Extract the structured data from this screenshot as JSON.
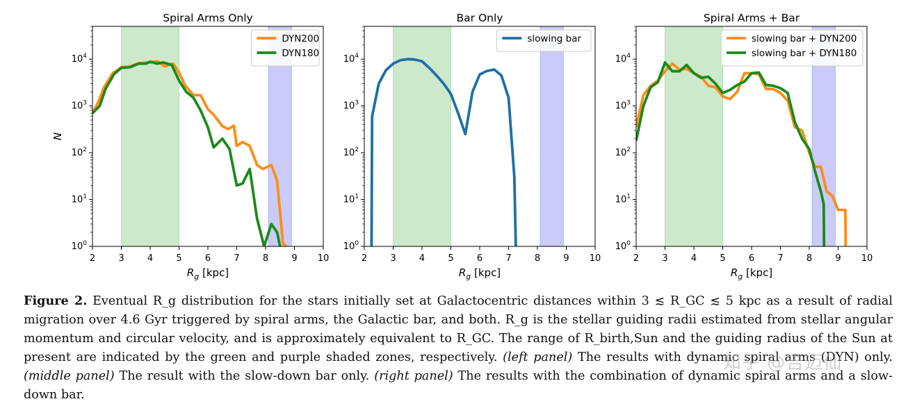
{
  "chart_data": [
    {
      "type": "line",
      "title": "Spiral Arms Only",
      "xlabel_text": "[kpc]",
      "ylabel": "N",
      "xlim": [
        2,
        10
      ],
      "ylim_log10": [
        0,
        4.7
      ],
      "yscale": "log",
      "xticks": [
        "2",
        "3",
        "4",
        "5",
        "6",
        "7",
        "8",
        "9",
        "10"
      ],
      "yticks": [
        "10^0",
        "10^1",
        "10^2",
        "10^3",
        "10^4"
      ],
      "shaded": [
        {
          "x0": 3.0,
          "x1": 5.0,
          "color": "#8fcf8c",
          "label": "R_birth,Sun"
        },
        {
          "x0": 8.1,
          "x1": 8.9,
          "color": "#8c8cf0",
          "label": "Sun guiding radius"
        }
      ],
      "legend": "top-right",
      "series": [
        {
          "name": "DYN200",
          "color": "#ff8c1a",
          "points": [
            [
              2.0,
              700
            ],
            [
              2.2,
              1200
            ],
            [
              2.4,
              2500
            ],
            [
              2.7,
              5000
            ],
            [
              3.0,
              6700
            ],
            [
              3.3,
              7000
            ],
            [
              3.6,
              8200
            ],
            [
              4.0,
              8600
            ],
            [
              4.25,
              9000
            ],
            [
              4.5,
              7000
            ],
            [
              4.8,
              8000
            ],
            [
              5.0,
              5200
            ],
            [
              5.2,
              2800
            ],
            [
              5.5,
              1700
            ],
            [
              5.75,
              1700
            ],
            [
              6.0,
              850
            ],
            [
              6.2,
              650
            ],
            [
              6.5,
              370
            ],
            [
              6.7,
              320
            ],
            [
              6.9,
              380
            ],
            [
              7.0,
              140
            ],
            [
              7.2,
              170
            ],
            [
              7.45,
              140
            ],
            [
              7.7,
              55
            ],
            [
              7.9,
              45
            ],
            [
              8.2,
              55
            ],
            [
              8.4,
              25
            ],
            [
              8.6,
              1.2
            ],
            [
              8.7,
              1
            ]
          ]
        },
        {
          "name": "DYN180",
          "color": "#1a8a1a",
          "points": [
            [
              2.0,
              700
            ],
            [
              2.25,
              1000
            ],
            [
              2.45,
              2300
            ],
            [
              2.75,
              4800
            ],
            [
              3.0,
              6500
            ],
            [
              3.3,
              6700
            ],
            [
              3.6,
              8000
            ],
            [
              3.85,
              8000
            ],
            [
              4.0,
              8800
            ],
            [
              4.25,
              8000
            ],
            [
              4.45,
              8500
            ],
            [
              4.75,
              7500
            ],
            [
              5.0,
              3500
            ],
            [
              5.25,
              2000
            ],
            [
              5.5,
              1500
            ],
            [
              5.75,
              800
            ],
            [
              6.0,
              350
            ],
            [
              6.2,
              130
            ],
            [
              6.5,
              200
            ],
            [
              6.75,
              120
            ],
            [
              7.0,
              20
            ],
            [
              7.2,
              22
            ],
            [
              7.45,
              45
            ],
            [
              7.7,
              4
            ],
            [
              7.95,
              1
            ],
            [
              8.2,
              3
            ],
            [
              8.4,
              2
            ],
            [
              8.5,
              1
            ]
          ]
        }
      ]
    },
    {
      "type": "line",
      "title": "Bar Only",
      "xlabel_text": "[kpc]",
      "ylabel": "",
      "xlim": [
        2,
        10
      ],
      "ylim_log10": [
        0,
        4.7
      ],
      "yscale": "log",
      "xticks": [
        "2",
        "3",
        "4",
        "5",
        "6",
        "7",
        "8",
        "9",
        "10"
      ],
      "yticks": [
        "10^0",
        "10^1",
        "10^2",
        "10^3",
        "10^4"
      ],
      "shaded": [
        {
          "x0": 3.0,
          "x1": 5.0,
          "color": "#8fcf8c",
          "label": "R_birth,Sun"
        },
        {
          "x0": 8.1,
          "x1": 8.9,
          "color": "#8c8cf0",
          "label": "Sun guiding radius"
        }
      ],
      "legend": "top-right",
      "series": [
        {
          "name": "slowing bar",
          "color": "#1f6fa8",
          "points": [
            [
              2.25,
              1
            ],
            [
              2.27,
              600
            ],
            [
              2.5,
              3000
            ],
            [
              2.75,
              5800
            ],
            [
              3.0,
              8000
            ],
            [
              3.25,
              9500
            ],
            [
              3.5,
              10000
            ],
            [
              3.75,
              9800
            ],
            [
              4.0,
              9000
            ],
            [
              4.25,
              6500
            ],
            [
              4.5,
              4500
            ],
            [
              4.75,
              3000
            ],
            [
              5.0,
              1800
            ],
            [
              5.25,
              700
            ],
            [
              5.5,
              250
            ],
            [
              5.75,
              2000
            ],
            [
              6.0,
              4700
            ],
            [
              6.25,
              5600
            ],
            [
              6.5,
              6000
            ],
            [
              6.75,
              4500
            ],
            [
              7.0,
              1500
            ],
            [
              7.2,
              30
            ],
            [
              7.25,
              1
            ]
          ]
        }
      ]
    },
    {
      "type": "line",
      "title": "Spiral Arms + Bar",
      "xlabel_text": "[kpc]",
      "ylabel": "",
      "xlim": [
        2,
        10
      ],
      "ylim_log10": [
        0,
        4.7
      ],
      "yscale": "log",
      "xticks": [
        "2",
        "3",
        "4",
        "5",
        "6",
        "7",
        "8",
        "9",
        "10"
      ],
      "yticks": [
        "10^0",
        "10^1",
        "10^2",
        "10^3",
        "10^4"
      ],
      "shaded": [
        {
          "x0": 3.0,
          "x1": 5.0,
          "color": "#8fcf8c",
          "label": "R_birth,Sun"
        },
        {
          "x0": 8.1,
          "x1": 8.9,
          "color": "#8c8cf0",
          "label": "Sun guiding radius"
        }
      ],
      "legend": "top-right",
      "series": [
        {
          "name": "slowing bar + DYN200",
          "color": "#ff8c1a",
          "points": [
            [
              2.0,
              350
            ],
            [
              2.25,
              1700
            ],
            [
              2.5,
              2700
            ],
            [
              2.75,
              3500
            ],
            [
              3.0,
              5500
            ],
            [
              3.25,
              8000
            ],
            [
              3.5,
              6000
            ],
            [
              3.75,
              6200
            ],
            [
              4.0,
              5000
            ],
            [
              4.25,
              4200
            ],
            [
              4.5,
              2700
            ],
            [
              4.75,
              2500
            ],
            [
              5.0,
              1600
            ],
            [
              5.25,
              1400
            ],
            [
              5.5,
              2000
            ],
            [
              5.75,
              5000
            ],
            [
              6.0,
              5000
            ],
            [
              6.25,
              4800
            ],
            [
              6.5,
              2300
            ],
            [
              6.75,
              2300
            ],
            [
              7.0,
              1900
            ],
            [
              7.25,
              1300
            ],
            [
              7.5,
              350
            ],
            [
              7.75,
              300
            ],
            [
              8.0,
              100
            ],
            [
              8.2,
              50
            ],
            [
              8.4,
              50
            ],
            [
              8.6,
              15
            ],
            [
              8.8,
              12
            ],
            [
              9.0,
              6
            ],
            [
              9.25,
              6
            ],
            [
              9.26,
              1
            ]
          ]
        },
        {
          "name": "slowing bar + DYN180",
          "color": "#1a8a1a",
          "points": [
            [
              2.0,
              180
            ],
            [
              2.25,
              1000
            ],
            [
              2.5,
              2500
            ],
            [
              2.75,
              3200
            ],
            [
              3.0,
              8500
            ],
            [
              3.25,
              5500
            ],
            [
              3.5,
              5500
            ],
            [
              3.75,
              7500
            ],
            [
              4.0,
              5000
            ],
            [
              4.25,
              4000
            ],
            [
              4.5,
              4200
            ],
            [
              4.75,
              3000
            ],
            [
              5.0,
              1900
            ],
            [
              5.25,
              2200
            ],
            [
              5.5,
              2800
            ],
            [
              5.75,
              3300
            ],
            [
              6.0,
              5000
            ],
            [
              6.25,
              5200
            ],
            [
              6.5,
              2800
            ],
            [
              6.75,
              2700
            ],
            [
              7.0,
              2400
            ],
            [
              7.25,
              1900
            ],
            [
              7.5,
              450
            ],
            [
              7.75,
              200
            ],
            [
              8.0,
              120
            ],
            [
              8.2,
              40
            ],
            [
              8.4,
              15
            ],
            [
              8.5,
              8
            ],
            [
              8.51,
              1
            ]
          ]
        }
      ]
    }
  ],
  "caption": {
    "label": "Figure 2.",
    "text": " Eventual R_g distribution for the stars initially set at Galactocentric distances within 3 ≲ R_GC ≲ 5 kpc as a result of radial migration over 4.6 Gyr triggered by spiral arms, the Galactic bar, and both. R_g is the stellar guiding radii estimated from stellar angular momentum and circular velocity, and is approximately equivalent to R_GC. The range of R_birth,Sun and the guiding radius of the Sun at present are indicated by the green and purple shaded zones, respectively. ",
    "left_panel": "(left panel)",
    "left_text": " The results with dynamic spiral arms (DYN) only. ",
    "middle_panel": "(middle panel)",
    "middle_text": " The result with the slow-down bar only. ",
    "right_panel": "(right panel)",
    "right_text": " The results with the combination of dynamic spiral arms and a slow-down bar."
  },
  "watermark": "知乎 @吉迈仙"
}
